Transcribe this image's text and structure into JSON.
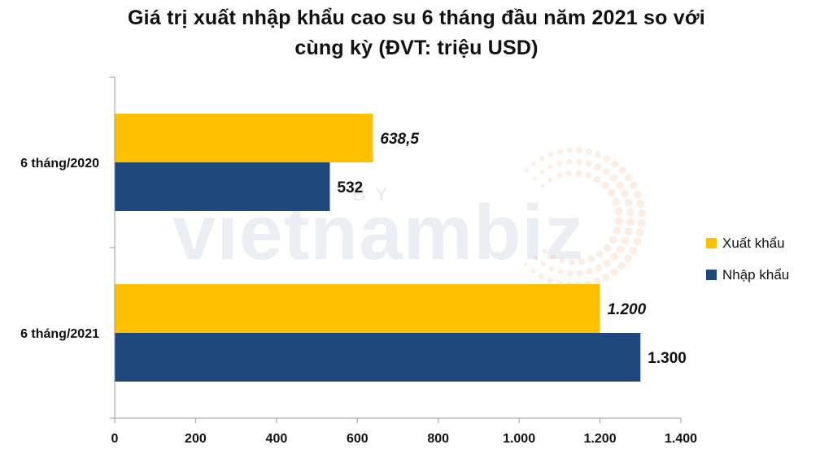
{
  "title_lines": [
    "Giá trị xuất nhập khẩu cao su 6 tháng đầu năm 2021 so với",
    "cùng kỳ (ĐVT: triệu USD)"
  ],
  "watermark": {
    "designed_by": "DESIGNED BY",
    "brand": "vietnambiz"
  },
  "colors": {
    "export": "#FFC000",
    "import": "#1F497D",
    "axis": "#9a9a9a",
    "watermark_dots": "#F4B183"
  },
  "chart_data": {
    "type": "bar",
    "orientation": "horizontal",
    "title": "Giá trị xuất nhập khẩu cao su 6 tháng đầu năm 2021 so với cùng kỳ (ĐVT: triệu USD)",
    "categories": [
      "6 tháng/2020",
      "6 tháng/2021"
    ],
    "series": [
      {
        "name": "Xuất khẩu",
        "values": [
          638.5,
          1200
        ],
        "labels": [
          "638,5",
          "1.200"
        ],
        "label_style": "italic"
      },
      {
        "name": "Nhập khẩu",
        "values": [
          532,
          1300
        ],
        "labels": [
          "532",
          "1.300"
        ],
        "label_style": "normal"
      }
    ],
    "x_ticks": [
      0,
      200,
      400,
      600,
      800,
      1000,
      1200,
      1400
    ],
    "x_tick_labels": [
      "0",
      "200",
      "400",
      "600",
      "800",
      "1.000",
      "1.200",
      "1.400"
    ],
    "xlim": [
      0,
      1400
    ],
    "xlabel": "",
    "ylabel": "",
    "grid": false,
    "legend": "right"
  }
}
